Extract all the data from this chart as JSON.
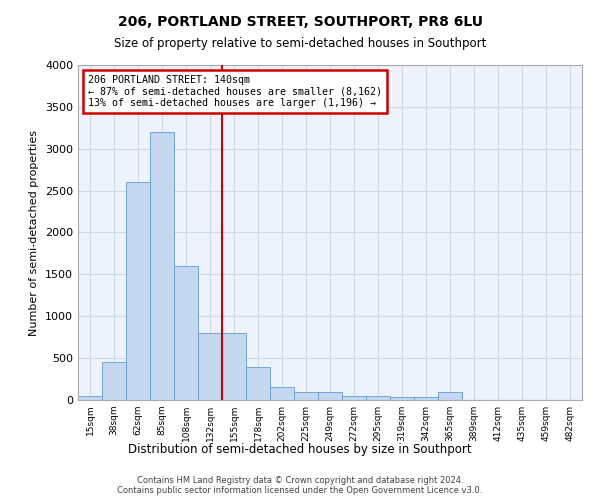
{
  "title": "206, PORTLAND STREET, SOUTHPORT, PR8 6LU",
  "subtitle": "Size of property relative to semi-detached houses in Southport",
  "xlabel": "Distribution of semi-detached houses by size in Southport",
  "ylabel": "Number of semi-detached properties",
  "footnote": "Contains HM Land Registry data © Crown copyright and database right 2024.\nContains public sector information licensed under the Open Government Licence v3.0.",
  "bar_color": "#c5d8f0",
  "bar_edge_color": "#5a9fd4",
  "grid_color": "#d0d8e8",
  "bg_color": "#eef3fb",
  "annotation_box_color": "#cc0000",
  "vline_color": "#cc0000",
  "vline_x": 5.5,
  "annotation_text": "206 PORTLAND STREET: 140sqm\n← 87% of semi-detached houses are smaller (8,162)\n13% of semi-detached houses are larger (1,196) →",
  "categories": [
    "15sqm",
    "38sqm",
    "62sqm",
    "85sqm",
    "108sqm",
    "132sqm",
    "155sqm",
    "178sqm",
    "202sqm",
    "225sqm",
    "249sqm",
    "272sqm",
    "295sqm",
    "319sqm",
    "342sqm",
    "365sqm",
    "389sqm",
    "412sqm",
    "435sqm",
    "459sqm",
    "482sqm"
  ],
  "values": [
    50,
    450,
    2600,
    3200,
    1600,
    800,
    800,
    400,
    150,
    100,
    100,
    50,
    50,
    40,
    30,
    100,
    0,
    0,
    0,
    0,
    0
  ],
  "ylim": [
    0,
    4000
  ],
  "yticks": [
    0,
    500,
    1000,
    1500,
    2000,
    2500,
    3000,
    3500,
    4000
  ]
}
